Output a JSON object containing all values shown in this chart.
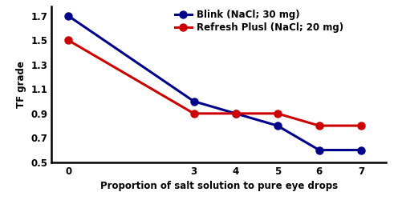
{
  "x": [
    0,
    3,
    4,
    5,
    6,
    7
  ],
  "blink_y": [
    1.7,
    1.0,
    0.9,
    0.8,
    0.6,
    0.6
  ],
  "refresh_y": [
    1.5,
    0.9,
    0.9,
    0.9,
    0.8,
    0.8
  ],
  "blink_label": "Blink (NaCl; 30 mg)",
  "refresh_label": "Refresh Plusl (NaCl; 20 mg)",
  "blink_color": "#00008B",
  "refresh_color": "#CC0000",
  "xlabel": "Proportion of salt solution to pure eye drops",
  "ylabel": "TF grade",
  "ylim": [
    0.5,
    1.78
  ],
  "yticks": [
    0.5,
    0.7,
    0.9,
    1.1,
    1.3,
    1.5,
    1.7
  ],
  "xticks": [
    0,
    3,
    4,
    5,
    6,
    7
  ],
  "marker": "o",
  "linewidth": 2.2,
  "markersize": 6.5
}
